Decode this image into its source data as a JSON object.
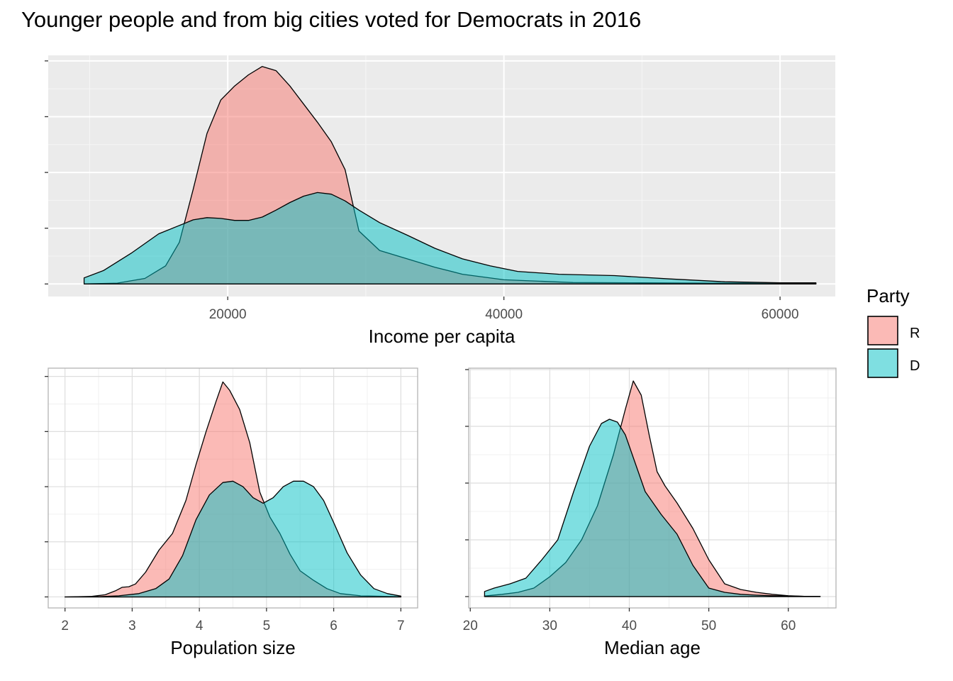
{
  "title": "Younger people and from big cities voted for Democrats in 2016",
  "legend": {
    "title": "Party",
    "items": [
      {
        "label": "R",
        "color": "#F8766D"
      },
      {
        "label": "D",
        "color": "#00BFC4"
      }
    ]
  },
  "chart_data": [
    {
      "type": "area",
      "title": "",
      "xlabel": "Income per capita",
      "ylabel": "",
      "theme": "grey",
      "grid": true,
      "legend_position": "right",
      "xlim": [
        7000,
        64000
      ],
      "ylim": [
        -4.5e-06,
        8.2e-05
      ],
      "x_ticks": [
        20000,
        40000,
        60000
      ],
      "x_tick_labels": [
        "20000",
        "40000",
        "60000"
      ],
      "y_ticks": [
        0,
        2e-05,
        4e-05,
        6e-05,
        8e-05
      ],
      "series": [
        {
          "name": "R",
          "color": "#F8766D",
          "x": [
            9600,
            12000,
            14000,
            15500,
            16500,
            17500,
            18500,
            19500,
            20500,
            21500,
            22500,
            23500,
            24500,
            25500,
            26500,
            27500,
            28500,
            29500,
            31000,
            33000,
            35000,
            37000,
            40000,
            45000,
            50000,
            55000,
            60000,
            62600
          ],
          "y": [
            0,
            3e-07,
            2e-06,
            6.5e-06,
            1.5e-05,
            3.4e-05,
            5.4e-05,
            6.6e-05,
            7.1e-05,
            7.5e-05,
            7.8e-05,
            7.65e-05,
            7.1e-05,
            6.45e-05,
            5.8e-05,
            5.1e-05,
            4.1e-05,
            1.9e-05,
            1.2e-05,
            9e-06,
            6e-06,
            3.5e-06,
            1.5e-06,
            5e-07,
            4e-07,
            3e-07,
            2e-07,
            2e-07
          ]
        },
        {
          "name": "D",
          "color": "#00BFC4",
          "x": [
            9600,
            11000,
            13000,
            15000,
            16500,
            17500,
            18500,
            19500,
            20500,
            21500,
            22500,
            23500,
            24500,
            25500,
            26500,
            27500,
            28500,
            29500,
            31000,
            33000,
            35000,
            37000,
            39000,
            41000,
            44000,
            48000,
            52000,
            56000,
            60000,
            62600
          ],
          "y": [
            2.2e-06,
            4.8e-06,
            1.1e-05,
            1.8e-05,
            2.1e-05,
            2.3e-05,
            2.38e-05,
            2.35e-05,
            2.28e-05,
            2.28e-05,
            2.4e-05,
            2.65e-05,
            2.92e-05,
            3.15e-05,
            3.28e-05,
            3.22e-05,
            2.98e-05,
            2.65e-05,
            2.2e-05,
            1.75e-05,
            1.28e-05,
            9e-06,
            6.5e-06,
            4.5e-06,
            3.5e-06,
            3e-06,
            1.8e-06,
            8e-07,
            4e-07,
            4e-07
          ]
        }
      ]
    },
    {
      "type": "area",
      "title": "",
      "xlabel": "Population size",
      "ylabel": "",
      "theme": "light",
      "grid": true,
      "xlim": [
        1.75,
        7.25
      ],
      "ylim": [
        -0.04,
        0.83
      ],
      "x_ticks": [
        2,
        3,
        4,
        5,
        6,
        7
      ],
      "x_tick_labels": [
        "2",
        "3",
        "4",
        "5",
        "6",
        "7"
      ],
      "y_ticks": [
        0,
        0.2,
        0.4,
        0.6,
        0.8
      ],
      "series": [
        {
          "name": "R",
          "color": "#F8766D",
          "x": [
            2.0,
            2.4,
            2.6,
            2.75,
            2.85,
            2.95,
            3.05,
            3.2,
            3.4,
            3.6,
            3.8,
            3.95,
            4.1,
            4.25,
            4.35,
            4.45,
            4.6,
            4.75,
            4.9,
            5.05,
            5.2,
            5.35,
            5.5,
            5.7,
            5.9,
            6.1,
            6.4,
            7.0
          ],
          "y": [
            0,
            0.002,
            0.008,
            0.022,
            0.035,
            0.037,
            0.047,
            0.09,
            0.17,
            0.23,
            0.35,
            0.48,
            0.6,
            0.71,
            0.78,
            0.75,
            0.68,
            0.56,
            0.38,
            0.29,
            0.23,
            0.155,
            0.095,
            0.06,
            0.03,
            0.012,
            0.004,
            0.001
          ]
        },
        {
          "name": "D",
          "color": "#00BFC4",
          "x": [
            2.0,
            2.5,
            2.8,
            3.1,
            3.35,
            3.55,
            3.75,
            3.95,
            4.15,
            4.35,
            4.5,
            4.65,
            4.8,
            4.95,
            5.1,
            5.25,
            5.4,
            5.55,
            5.7,
            5.85,
            6.0,
            6.2,
            6.4,
            6.6,
            6.8,
            7.0
          ],
          "y": [
            0,
            0.001,
            0.004,
            0.012,
            0.03,
            0.065,
            0.15,
            0.28,
            0.37,
            0.415,
            0.42,
            0.4,
            0.36,
            0.34,
            0.36,
            0.4,
            0.42,
            0.42,
            0.4,
            0.35,
            0.27,
            0.16,
            0.08,
            0.03,
            0.012,
            0.003
          ]
        }
      ]
    },
    {
      "type": "area",
      "title": "",
      "xlabel": "Median age",
      "ylabel": "",
      "theme": "light",
      "grid": true,
      "xlim": [
        19.8,
        66.0
      ],
      "ylim": [
        -0.004,
        0.0805
      ],
      "x_ticks": [
        20,
        30,
        40,
        50,
        60
      ],
      "x_tick_labels": [
        "20",
        "30",
        "40",
        "50",
        "60"
      ],
      "y_ticks": [
        0,
        0.02,
        0.04,
        0.06,
        0.08
      ],
      "series": [
        {
          "name": "R",
          "color": "#F8766D",
          "x": [
            21.8,
            24,
            26,
            28,
            30,
            32,
            34,
            36,
            38,
            39.5,
            40.5,
            41.5,
            42.5,
            43.5,
            44.5,
            46,
            48,
            50,
            52,
            54,
            56,
            58,
            60,
            62,
            64
          ],
          "y": [
            0.0002,
            0.0008,
            0.0015,
            0.003,
            0.007,
            0.012,
            0.02,
            0.032,
            0.05,
            0.066,
            0.076,
            0.071,
            0.057,
            0.044,
            0.039,
            0.033,
            0.024,
            0.013,
            0.0045,
            0.0025,
            0.0015,
            0.0008,
            0.0003,
            0.0001,
            5e-05
          ]
        },
        {
          "name": "D",
          "color": "#00BFC4",
          "x": [
            21.8,
            23,
            25,
            27,
            29,
            31,
            33,
            35,
            36.5,
            37.5,
            38.5,
            39.5,
            40.5,
            42,
            44,
            46,
            48,
            50,
            52,
            54,
            56,
            58,
            60,
            62,
            64
          ],
          "y": [
            0.0018,
            0.003,
            0.0045,
            0.0065,
            0.013,
            0.02,
            0.037,
            0.053,
            0.061,
            0.0625,
            0.0615,
            0.057,
            0.049,
            0.037,
            0.029,
            0.022,
            0.011,
            0.003,
            0.0015,
            0.0008,
            0.0005,
            0.0003,
            0.0002,
            0.0001,
            5e-05
          ]
        }
      ]
    }
  ]
}
